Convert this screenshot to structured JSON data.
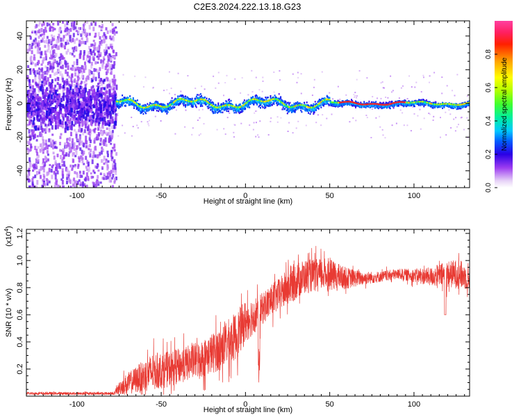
{
  "title": "C2E3.2024.222.13.18.G23",
  "chart_data": [
    {
      "type": "heatmap",
      "xlabel": "Height of straight line (km)",
      "ylabel": "Frequency (Hz)",
      "xlim": [
        -130,
        133
      ],
      "ylim": [
        -50,
        49
      ],
      "x_ticks": [
        -100,
        -50,
        0,
        50,
        100
      ],
      "x_tick_labels": [
        "-100",
        "-50",
        "0",
        "50",
        "100"
      ],
      "y_ticks": [
        -40,
        -20,
        0,
        20,
        40
      ],
      "y_tick_labels": [
        "-40",
        "-20",
        "0",
        "20",
        "40"
      ],
      "colorbar": {
        "label": "Normalized spectral amplitude",
        "range": [
          0,
          1
        ],
        "ticks": [
          0,
          0.2,
          0.4,
          0.6,
          0.8
        ],
        "tick_labels": [
          "0.0",
          "0.2",
          "0.4",
          "0.6",
          "0.8"
        ]
      },
      "description_regions": [
        {
          "x_range": [
            -130,
            -77
          ],
          "freq_spread": 49,
          "amplitude": "low-scattered"
        },
        {
          "x_range": [
            -77,
            133
          ],
          "freq_spread": 5,
          "amplitude": "concentrated-near-zero"
        }
      ]
    },
    {
      "type": "line",
      "xlabel": "Height of straight line (km)",
      "ylabel": "SNR (10 * v/v)",
      "y_multiplier": "(x10^4)",
      "y_multiplier_base": "(x10",
      "y_multiplier_exp": "4",
      "y_multiplier_close": ")",
      "color": "#e83a33",
      "xlim": [
        -130,
        133
      ],
      "ylim": [
        0.0,
        1.23
      ],
      "x_ticks": [
        -100,
        -50,
        0,
        50,
        100
      ],
      "x_tick_labels": [
        "-100",
        "-50",
        "0",
        "50",
        "100"
      ],
      "y_ticks": [
        0.2,
        0.4,
        0.6,
        0.8,
        1.0,
        1.2
      ],
      "y_tick_labels": [
        "0.2",
        "0.4",
        "0.6",
        "0.8",
        "1.0",
        "1.2"
      ],
      "envelope": {
        "x": [
          -130,
          -78,
          -74,
          -65,
          -55,
          -45,
          -35,
          -25,
          -15,
          -5,
          0,
          5,
          8,
          12,
          20,
          25,
          30,
          35,
          40,
          48,
          55,
          60,
          70,
          80,
          90,
          100,
          110,
          120,
          127,
          133
        ],
        "mean": [
          0.02,
          0.02,
          0.07,
          0.12,
          0.18,
          0.2,
          0.24,
          0.28,
          0.35,
          0.45,
          0.55,
          0.6,
          0.62,
          0.67,
          0.75,
          0.8,
          0.85,
          0.88,
          0.89,
          0.9,
          0.88,
          0.87,
          0.87,
          0.88,
          0.9,
          0.89,
          0.88,
          0.9,
          0.9,
          0.86
        ],
        "amp": [
          0.01,
          0.01,
          0.06,
          0.1,
          0.14,
          0.13,
          0.13,
          0.14,
          0.16,
          0.18,
          0.16,
          0.14,
          0.12,
          0.12,
          0.12,
          0.14,
          0.14,
          0.13,
          0.12,
          0.12,
          0.1,
          0.08,
          0.05,
          0.04,
          0.04,
          0.05,
          0.07,
          0.1,
          0.11,
          0.08
        ]
      }
    }
  ]
}
